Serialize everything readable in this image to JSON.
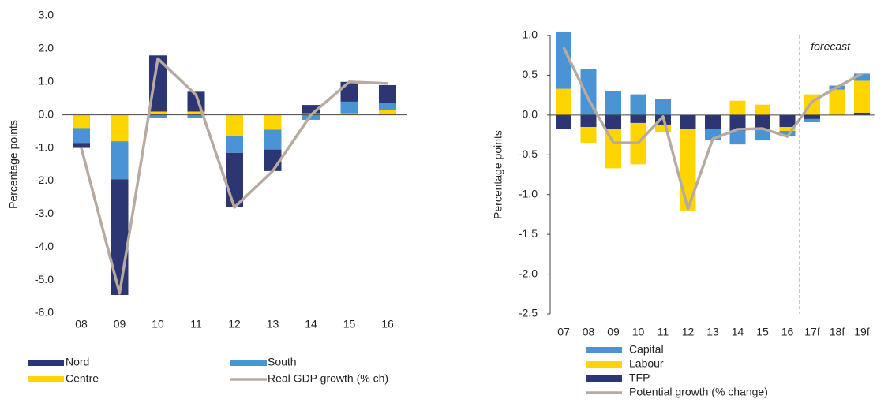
{
  "chart_data": [
    {
      "type": "bar",
      "ylabel": "Percentage points",
      "categories": [
        "08",
        "09",
        "10",
        "11",
        "12",
        "13",
        "14",
        "15",
        "16"
      ],
      "ylim": [
        -6,
        3
      ],
      "yticks": [
        {
          "value": -6,
          "label": "-6.0"
        },
        {
          "value": -5,
          "label": "-5.0"
        },
        {
          "value": -4,
          "label": "-4.0"
        },
        {
          "value": -3,
          "label": "-3.0"
        },
        {
          "value": -2,
          "label": "-2.0"
        },
        {
          "value": -1,
          "label": "-1.0"
        },
        {
          "value": 0,
          "label": "0.0"
        },
        {
          "value": 1,
          "label": "1.0"
        },
        {
          "value": 2,
          "label": "2.0"
        },
        {
          "value": 3,
          "label": "3.0"
        }
      ],
      "series": [
        {
          "name": "Nord",
          "type": "bar",
          "color": "#2b3673",
          "values": [
            -0.15,
            -3.5,
            1.7,
            0.6,
            -1.65,
            -0.65,
            0.25,
            0.6,
            0.55
          ]
        },
        {
          "name": "South",
          "type": "bar",
          "color": "#4a94d6",
          "values": [
            -0.45,
            -1.15,
            -0.1,
            -0.1,
            -0.5,
            -0.6,
            -0.15,
            0.35,
            0.2
          ]
        },
        {
          "name": "Centre",
          "type": "bar",
          "color": "#ffd500",
          "values": [
            -0.4,
            -0.8,
            0.1,
            0.1,
            -0.65,
            -0.45,
            0.05,
            0.05,
            0.15
          ]
        },
        {
          "name": "Real GDP growth (% ch)",
          "type": "line",
          "color": "#b7aba1",
          "values": [
            -1.0,
            -5.4,
            1.7,
            0.6,
            -2.8,
            -1.7,
            0.0,
            1.0,
            0.95
          ]
        }
      ]
    },
    {
      "type": "bar",
      "ylabel": "Percentage points",
      "annotation": "forecast",
      "categories": [
        "07",
        "08",
        "09",
        "10",
        "11",
        "12",
        "13",
        "14",
        "15",
        "16",
        "17f",
        "18f",
        "19f"
      ],
      "ylim": [
        -2.5,
        1.0
      ],
      "yticks": [
        {
          "value": -2.5,
          "label": "-2.5"
        },
        {
          "value": -2,
          "label": "-2.0"
        },
        {
          "value": -1.5,
          "label": "-1.5"
        },
        {
          "value": -1,
          "label": "-1.0"
        },
        {
          "value": -0.5,
          "label": "-0.5"
        },
        {
          "value": 0,
          "label": "0.0"
        },
        {
          "value": 0.5,
          "label": "0.5"
        },
        {
          "value": 1,
          "label": "1.0"
        }
      ],
      "series": [
        {
          "name": "Capital",
          "type": "bar",
          "color": "#4a94d6",
          "values": [
            0.72,
            0.58,
            0.3,
            0.26,
            0.2,
            0,
            -0.13,
            -0.17,
            -0.14,
            -0.07,
            -0.04,
            0.05,
            0.09
          ]
        },
        {
          "name": "Labour",
          "type": "bar",
          "color": "#ffd500",
          "values": [
            0.33,
            -0.2,
            -0.5,
            -0.52,
            -0.1,
            -1.03,
            0,
            0.18,
            0.13,
            -0.05,
            0.26,
            0.32,
            0.4
          ]
        },
        {
          "name": "TFP",
          "type": "bar",
          "color": "#2b3673",
          "values": [
            -0.17,
            -0.15,
            -0.17,
            -0.1,
            -0.12,
            -0.17,
            -0.18,
            -0.2,
            -0.18,
            -0.15,
            -0.05,
            0,
            0.03
          ]
        },
        {
          "name": "Potential growth (% change)",
          "type": "line",
          "color": "#b7aba1",
          "values": [
            0.85,
            0.2,
            -0.35,
            -0.35,
            -0.02,
            -1.18,
            -0.3,
            -0.18,
            -0.17,
            -0.27,
            0.17,
            0.35,
            0.52
          ]
        }
      ]
    }
  ]
}
